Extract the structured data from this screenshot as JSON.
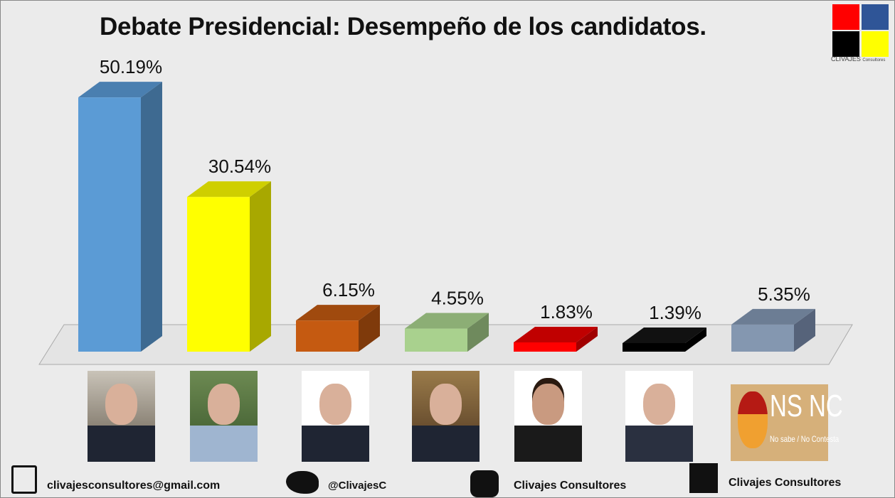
{
  "chart_data": {
    "type": "bar",
    "title": "Debate Presidencial: Desempeño de los candidatos.",
    "values": [
      50.19,
      30.54,
      6.15,
      4.55,
      1.83,
      1.39,
      5.35
    ],
    "labels": [
      "50.19%",
      "30.54%",
      "6.15%",
      "4.55%",
      "1.83%",
      "1.39%",
      "5.35%"
    ],
    "colors": [
      {
        "front": "#5b9bd5",
        "side": "#3e6a91",
        "top": "#4a7fb0"
      },
      {
        "front": "#ffff00",
        "side": "#a8a800",
        "top": "#cfcf00"
      },
      {
        "front": "#c55a11",
        "side": "#7f3a0b",
        "top": "#a04a0e"
      },
      {
        "front": "#a9d18e",
        "side": "#6f8a5d",
        "top": "#8cae75"
      },
      {
        "front": "#ff0000",
        "side": "#a00000",
        "top": "#c00000"
      },
      {
        "front": "#000000",
        "side": "#000000",
        "top": "#111111"
      },
      {
        "front": "#8497b0",
        "side": "#56637a",
        "top": "#6c7d94"
      }
    ],
    "ylim": [
      0,
      55
    ]
  },
  "logo": {
    "text": "CLIVAJES",
    "sub": "Consultores"
  },
  "nsnc": {
    "big": "NS NC",
    "small": "No sabe / No Contesta"
  },
  "footer": {
    "email": "clivajesconsultores@gmail.com",
    "twitter": "@ClivajesC",
    "instagram": "Clivajes Consultores",
    "facebook": "Clivajes Consultores"
  }
}
